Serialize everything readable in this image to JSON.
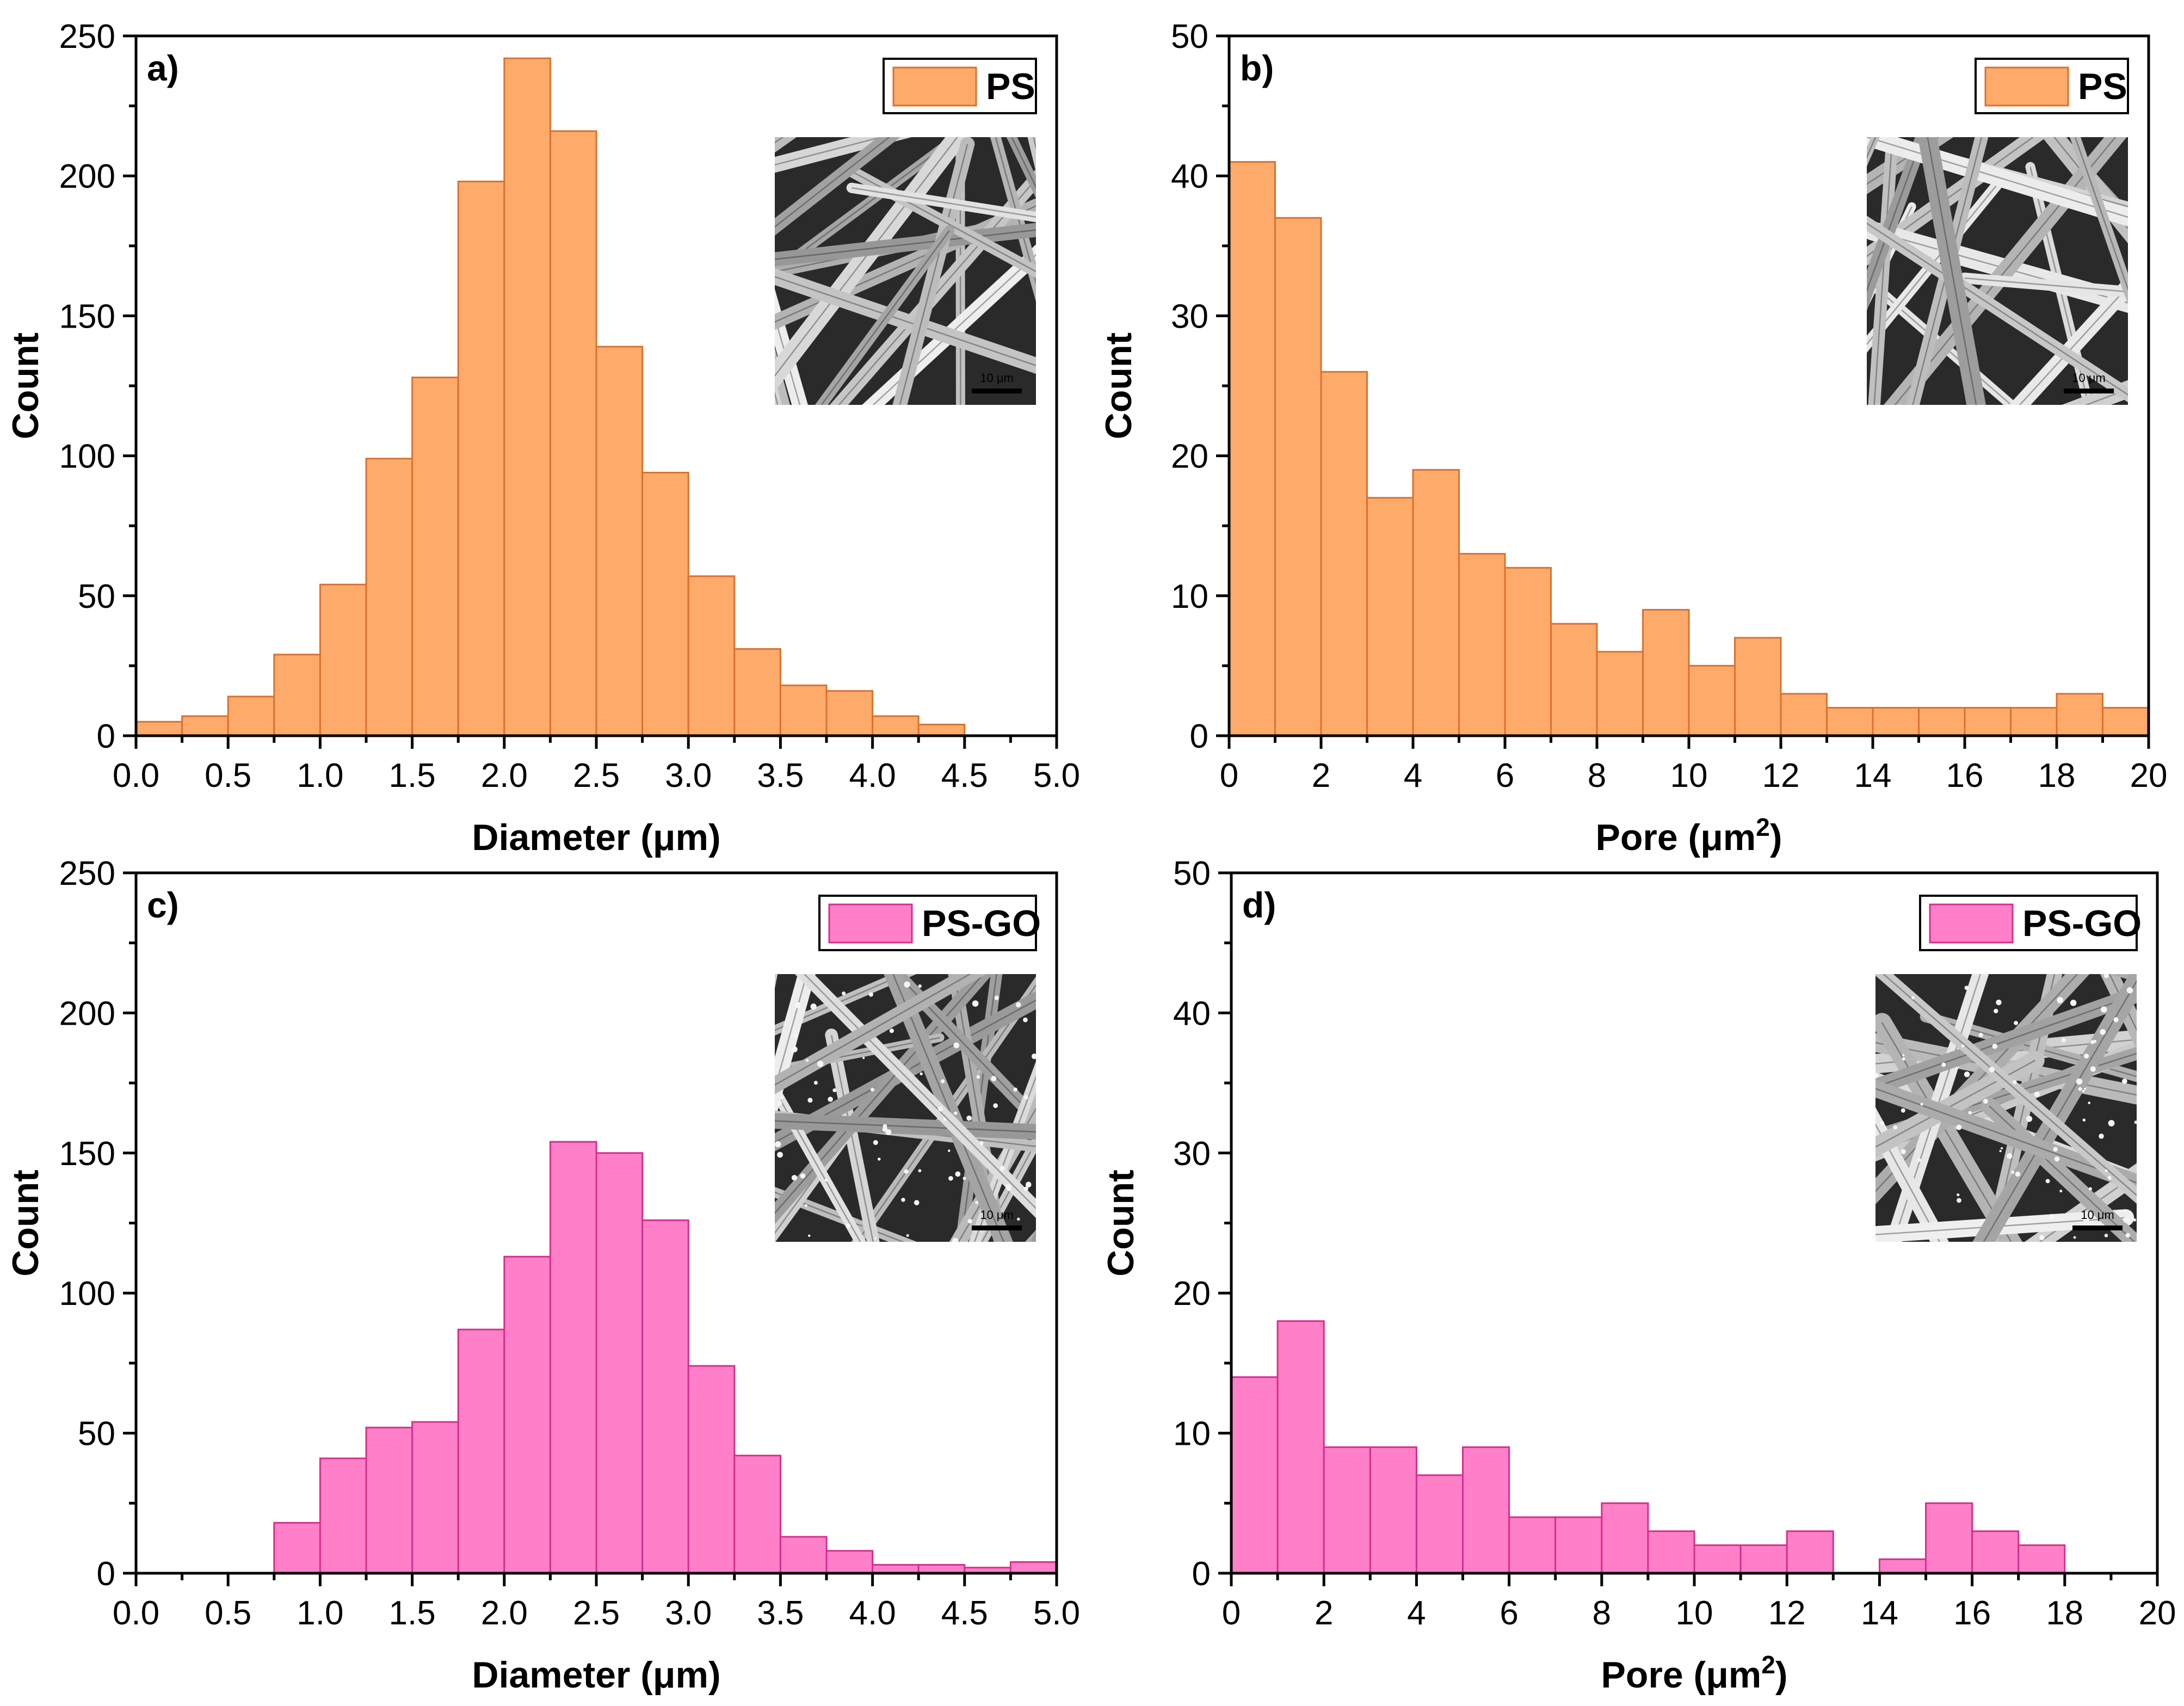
{
  "chart_data": [
    {
      "id": "a",
      "type": "bar",
      "panel_label": "a)",
      "legend": "PS",
      "color": "#FDAA6A",
      "edge_color": "#D9722F",
      "xlabel": "Diameter (μm)",
      "ylabel": "Count",
      "xlim": [
        0,
        5
      ],
      "ylim": [
        0,
        250
      ],
      "bin_width": 0.25,
      "x_ticks": [
        "0.0",
        "0.5",
        "1.0",
        "1.5",
        "2.0",
        "2.5",
        "3.0",
        "3.5",
        "4.0",
        "4.5",
        "5.0"
      ],
      "y_ticks": [
        "0",
        "50",
        "100",
        "150",
        "200",
        "250"
      ],
      "bins_start": [
        0,
        0.25,
        0.5,
        0.75,
        1.0,
        1.25,
        1.5,
        1.75,
        2.0,
        2.25,
        2.5,
        2.75,
        3.0,
        3.25,
        3.5,
        3.75,
        4.0,
        4.25
      ],
      "values": [
        5,
        7,
        14,
        29,
        54,
        99,
        128,
        198,
        242,
        216,
        139,
        94,
        57,
        31,
        18,
        16,
        7,
        4
      ],
      "inset": "SEM micrograph of PS fibers",
      "scale_bar": "10 μm"
    },
    {
      "id": "b",
      "type": "bar",
      "panel_label": "b)",
      "legend": "PS",
      "color": "#FDAA6A",
      "edge_color": "#D9722F",
      "xlabel": "Pore (μm",
      "xlabel_sup": "2",
      "xlabel_close": ")",
      "ylabel": "Count",
      "xlim": [
        0,
        20
      ],
      "ylim": [
        0,
        50
      ],
      "bin_width": 1,
      "x_ticks": [
        "0",
        "2",
        "4",
        "6",
        "8",
        "10",
        "12",
        "14",
        "16",
        "18",
        "20"
      ],
      "y_ticks": [
        "0",
        "10",
        "20",
        "30",
        "40",
        "50"
      ],
      "bins_start": [
        0,
        1,
        2,
        3,
        4,
        5,
        6,
        7,
        8,
        9,
        10,
        11,
        12,
        13,
        14,
        15,
        16,
        17,
        18,
        19
      ],
      "values": [
        41,
        37,
        26,
        17,
        19,
        13,
        12,
        8,
        6,
        9,
        5,
        7,
        3,
        2,
        2,
        2,
        2,
        2,
        3,
        2
      ],
      "inset": "SEM micrograph of PS fibers",
      "scale_bar": "10 μm"
    },
    {
      "id": "c",
      "type": "bar",
      "panel_label": "c)",
      "legend": "PS-GO",
      "color": "#FF80C8",
      "edge_color": "#D62E8E",
      "xlabel": "Diameter (μm)",
      "ylabel": "Count",
      "xlim": [
        0,
        5
      ],
      "ylim": [
        0,
        250
      ],
      "bin_width": 0.25,
      "x_ticks": [
        "0.0",
        "0.5",
        "1.0",
        "1.5",
        "2.0",
        "2.5",
        "3.0",
        "3.5",
        "4.0",
        "4.5",
        "5.0"
      ],
      "y_ticks": [
        "0",
        "50",
        "100",
        "150",
        "200",
        "250"
      ],
      "bins_start": [
        0.75,
        1.0,
        1.25,
        1.5,
        1.75,
        2.0,
        2.25,
        2.5,
        2.75,
        3.0,
        3.25,
        3.5,
        3.75,
        4.0,
        4.25,
        4.5,
        4.75
      ],
      "values": [
        18,
        41,
        52,
        54,
        87,
        113,
        154,
        150,
        126,
        74,
        42,
        13,
        8,
        3,
        3,
        2,
        4
      ],
      "inset": "SEM micrograph of PS-GO fibers",
      "scale_bar": "10 μm"
    },
    {
      "id": "d",
      "type": "bar",
      "panel_label": "d)",
      "legend": "PS-GO",
      "color": "#FF80C8",
      "edge_color": "#D62E8E",
      "xlabel": "Pore (μm",
      "xlabel_sup": "2",
      "xlabel_close": ")",
      "ylabel": "Count",
      "xlim": [
        0,
        20
      ],
      "ylim": [
        0,
        50
      ],
      "bin_width": 1,
      "x_ticks": [
        "0",
        "2",
        "4",
        "6",
        "8",
        "10",
        "12",
        "14",
        "16",
        "18",
        "20"
      ],
      "y_ticks": [
        "0",
        "10",
        "20",
        "30",
        "40",
        "50"
      ],
      "bins_start": [
        0,
        1,
        2,
        3,
        4,
        5,
        6,
        7,
        8,
        9,
        10,
        11,
        12,
        14,
        15,
        16,
        17
      ],
      "values": [
        14,
        18,
        9,
        9,
        7,
        9,
        4,
        4,
        5,
        3,
        2,
        2,
        3,
        1,
        5,
        3,
        2
      ],
      "inset": "SEM micrograph of PS-GO fibers",
      "scale_bar": "10 μm"
    }
  ]
}
